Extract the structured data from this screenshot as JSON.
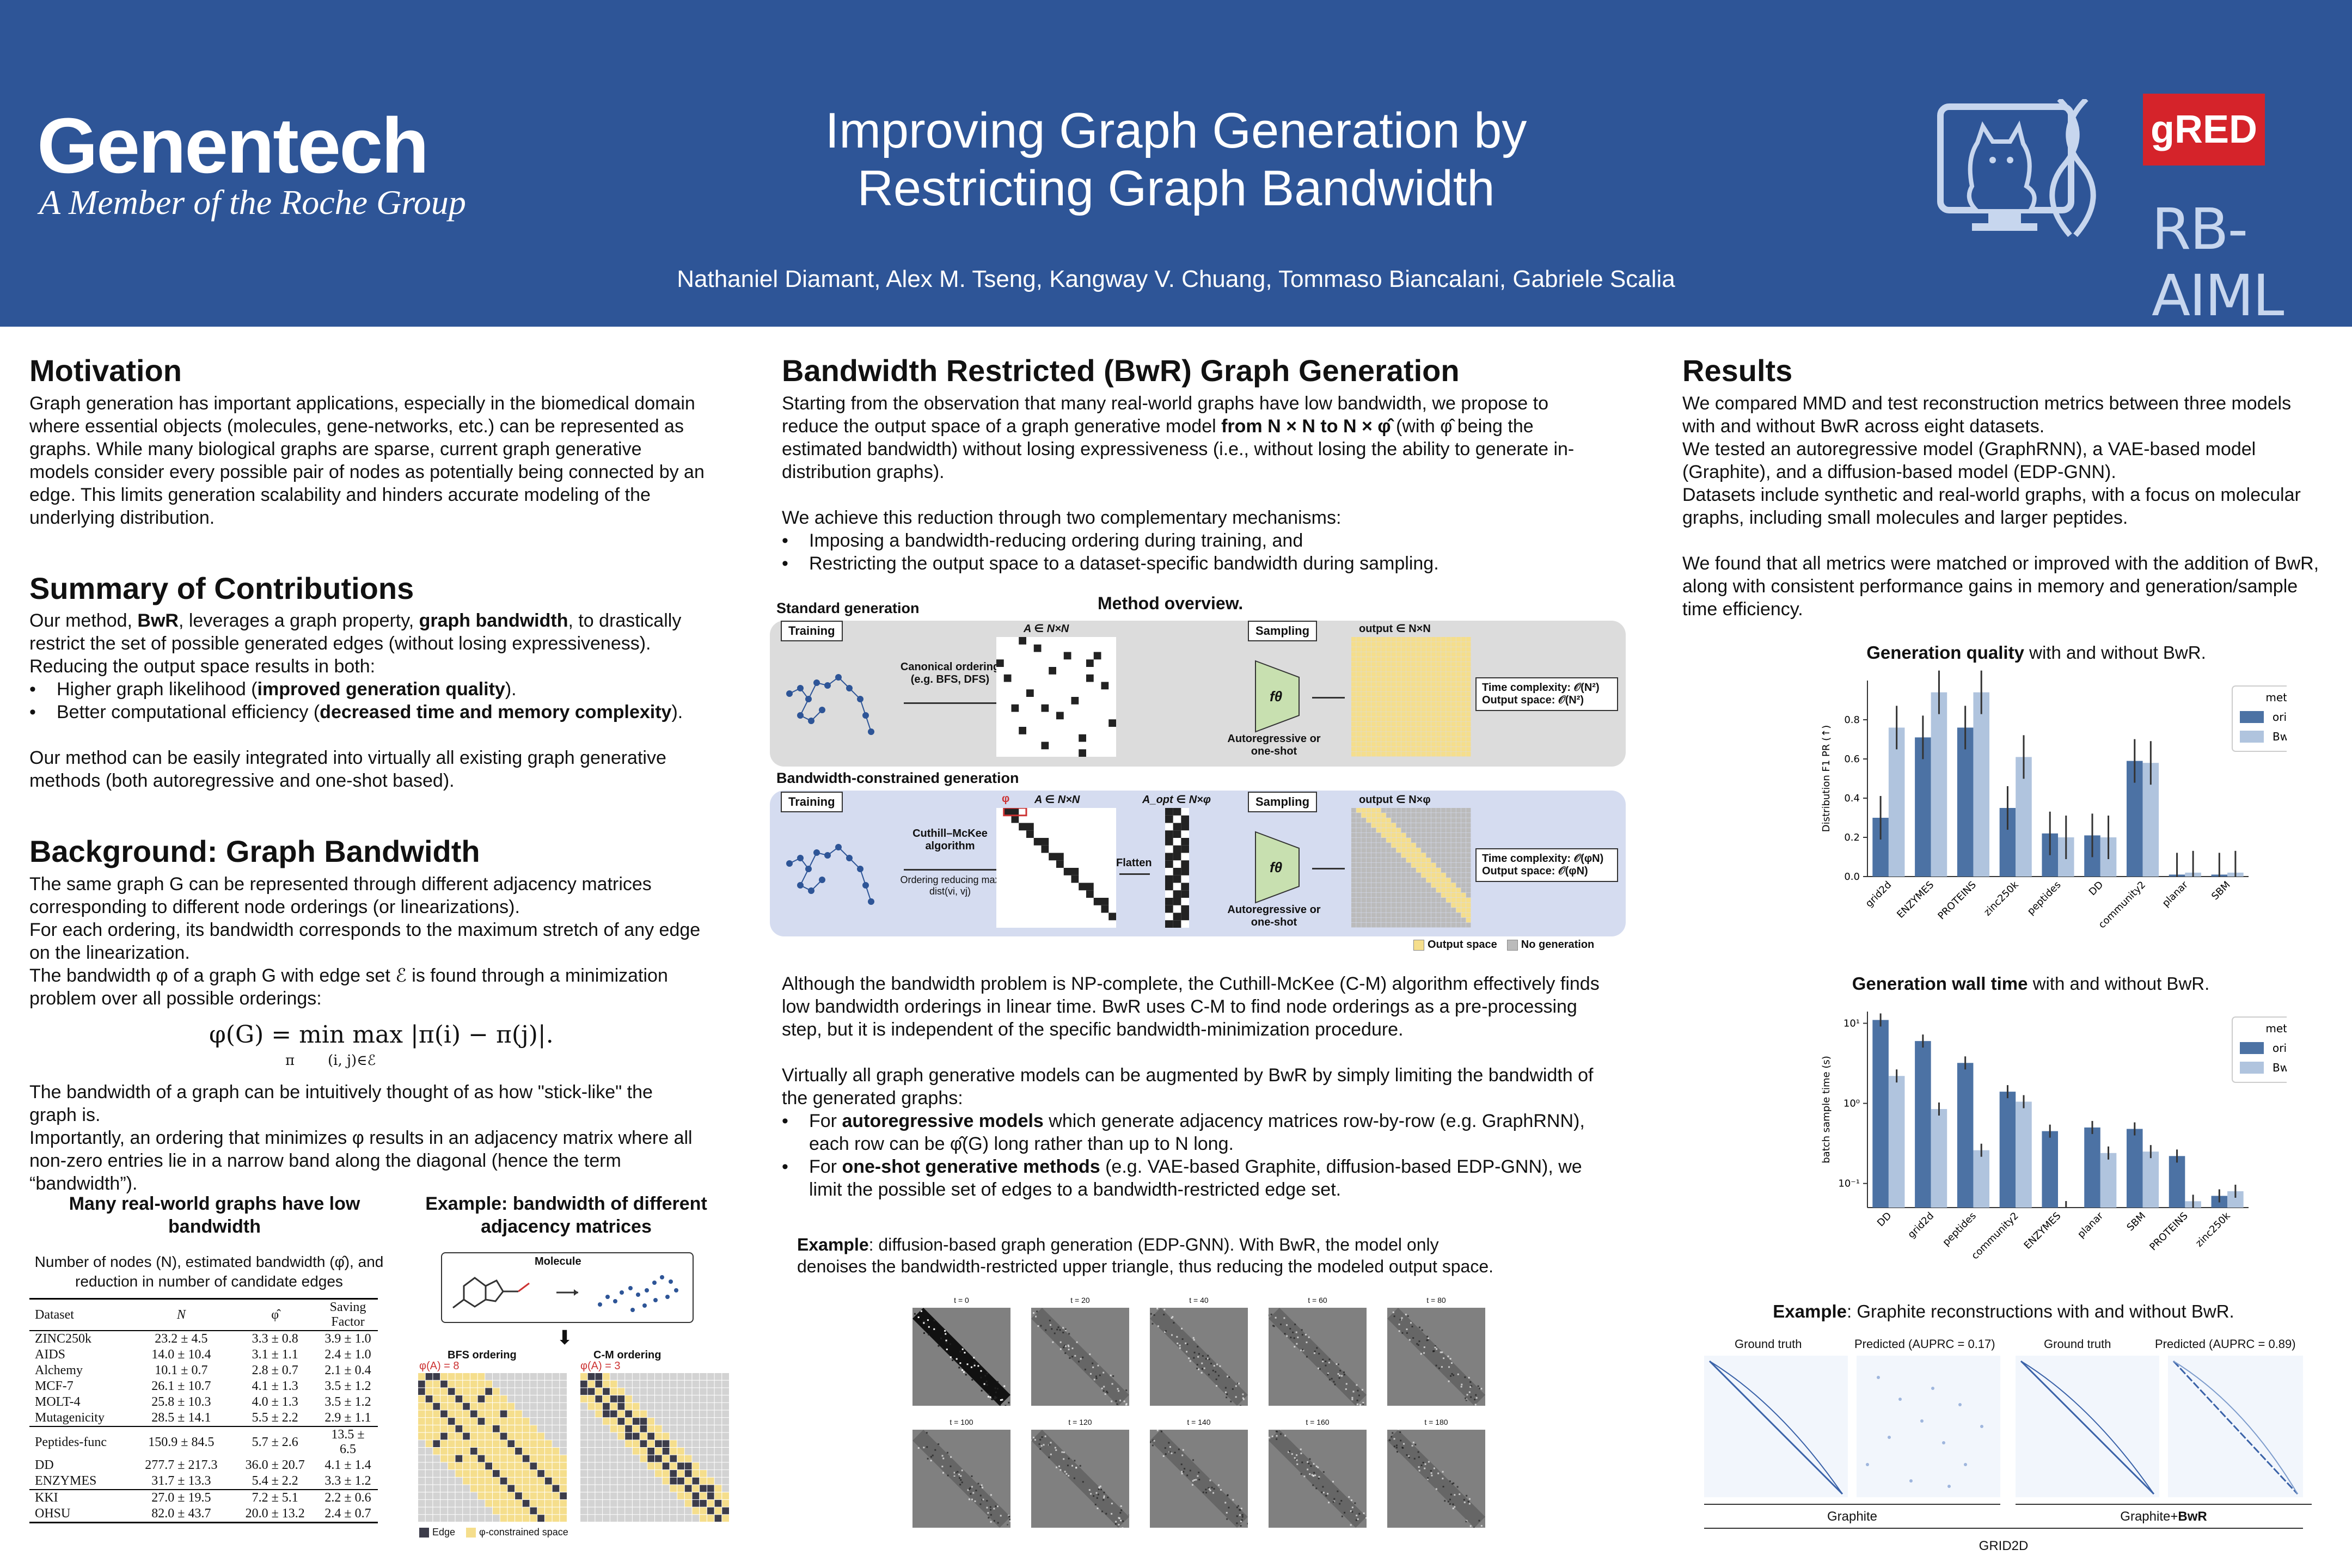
{
  "header": {
    "brand": "Genentech",
    "brand_sub": "A Member of the Roche Group",
    "title_line1": "Improving Graph Generation by",
    "title_line2": "Restricting Graph Bandwidth",
    "authors": "Nathaniel Diamant, Alex M. Tseng, Kangway V. Chuang, Tommaso Biancalani, Gabriele Scalia",
    "logo_gred": "gRED",
    "logo_rbaiml": "RB-AIML",
    "colors": {
      "header_bg": "#2e5597",
      "gred_red": "#d5232a"
    }
  },
  "motivation": {
    "heading": "Motivation",
    "text": "Graph generation has important applications, especially in the biomedical domain where essential objects (molecules, gene-networks, etc.) can be represented as graphs. While many biological graphs are sparse, current graph generative models consider every possible pair of nodes as potentially being connected by an edge. This limits generation scalability and hinders accurate modeling of the underlying distribution."
  },
  "contributions": {
    "heading": "Summary of Contributions",
    "p1_a": "Our method, ",
    "p1_b": "BwR",
    "p1_c": ", leverages a graph property, ",
    "p1_d": "graph bandwidth",
    "p1_e": ", to drastically restrict the set of possible generated edges (without losing expressiveness). Reducing the output space results in both:",
    "b1_a": "Higher graph likelihood (",
    "b1_b": "improved generation quality",
    "b1_c": ").",
    "b2_a": "Better computational efficiency (",
    "b2_b": "decreased time and memory complexity",
    "b2_c": ").",
    "p2": "Our method can be easily integrated into virtually all existing graph generative methods (both autoregressive and one-shot based)."
  },
  "background": {
    "heading": "Background: Graph Bandwidth",
    "p1": "The same graph G can be represented through different adjacency matrices corresponding to different node orderings (or linearizations).",
    "p2": "For each ordering, its bandwidth corresponds to the maximum stretch of any edge on the linearization.",
    "p3": "The bandwidth φ of a graph G with edge set ℰ is found through a minimization problem over all possible orderings:",
    "formula": "φ(G) = min max |π(i) − π(j)|.",
    "formula_sub_min": "π",
    "formula_sub_max": "(i, j)∈ℰ",
    "p4": "The bandwidth of a graph can be intuitively thought of as how \"stick-like\" the graph is.",
    "p5": "Importantly, an ordering that minimizes φ results in an adjacency matrix where all non-zero entries lie in a narrow band along the diagonal (hence the term “bandwidth”)."
  },
  "table_section": {
    "title": "Many real-world graphs have low bandwidth",
    "caption": "Number of nodes (N), estimated bandwidth (φ̂), and reduction in number of candidate edges",
    "columns": [
      "Dataset",
      "N",
      "φ̂",
      "Saving Factor"
    ],
    "groups": [
      [
        [
          "ZINC250k",
          "23.2 ± 4.5",
          "3.3 ± 0.8",
          "3.9 ± 1.0"
        ],
        [
          "AIDS",
          "14.0 ± 10.4",
          "3.1 ± 1.1",
          "2.4 ± 1.0"
        ],
        [
          "Alchemy",
          "10.1 ± 0.7",
          "2.8 ± 0.7",
          "2.1 ± 0.4"
        ],
        [
          "MCF-7",
          "26.1 ± 10.7",
          "4.1 ± 1.3",
          "3.5 ± 1.2"
        ],
        [
          "MOLT-4",
          "25.8 ± 10.3",
          "4.0 ± 1.3",
          "3.5 ± 1.2"
        ],
        [
          "Mutagenicity",
          "28.5 ± 14.1",
          "5.5 ± 2.2",
          "2.9 ± 1.1"
        ]
      ],
      [
        [
          "Peptides-func",
          "150.9 ± 84.5",
          "5.7 ± 2.6",
          "13.5 ± 6.5"
        ],
        [
          "DD",
          "277.7 ± 217.3",
          "36.0 ± 20.7",
          "4.1 ± 1.4"
        ],
        [
          "ENZYMES",
          "31.7 ± 13.3",
          "5.4 ± 2.2",
          "3.3 ± 1.2"
        ]
      ],
      [
        [
          "KKI",
          "27.0 ± 19.5",
          "7.2 ± 5.1",
          "2.2 ± 0.6"
        ],
        [
          "OHSU",
          "82.0 ± 43.7",
          "20.0 ± 13.2",
          "2.4 ± 0.7"
        ]
      ]
    ]
  },
  "example_bw": {
    "title": "Example: bandwidth of different adjacency matrices",
    "molecule_label": "Molecule",
    "bfs_label": "BFS ordering",
    "cm_label": "C-M ordering",
    "bfs_phi": "φ(A) = 8",
    "cm_phi": "φ(A) = 3",
    "legend_edge": "Edge",
    "legend_space": "φ-constrained space"
  },
  "bwr": {
    "heading": "Bandwidth Restricted (BwR) Graph Generation",
    "p1_a": "Starting from the observation that many real-world graphs have low bandwidth, we propose to reduce the output space of a graph generative model ",
    "p1_b": "from N × N to N × φ̂",
    "p1_c": " (with φ̂ being the estimated bandwidth) without losing expressiveness (i.e., without losing the ability to generate in-distribution graphs).",
    "p2": "We achieve this reduction through two complementary mechanisms:",
    "b1": "Imposing a bandwidth-reducing ordering during training, and",
    "b2": "Restricting the output space to a dataset-specific bandwidth during sampling.",
    "p3": "Although the bandwidth problem is NP-complete, the Cuthill-McKee (C-M) algorithm effectively finds low bandwidth orderings in linear time. BwR uses C-M to find node orderings as a pre-processing step, but it is independent of the specific bandwidth-minimization procedure.",
    "p4": "Virtually all graph generative models can be augmented by BwR by simply limiting the bandwidth of the generated graphs:",
    "b3_a": "For ",
    "b3_b": "autoregressive models",
    "b3_c": " which generate adjacency matrices row-by-row (e.g. GraphRNN), each row can be φ̂(G) long rather than up to N long.",
    "b4_a": "For ",
    "b4_b": "one-shot generative methods",
    "b4_c": " (e.g. VAE-based Graphite, diffusion-based EDP-GNN), we limit the possible set of edges to a bandwidth-restricted edge set."
  },
  "method": {
    "title": "Method overview.",
    "standard_label": "Standard generation",
    "constrained_label": "Bandwidth-constrained generation",
    "training": "Training",
    "sampling": "Sampling",
    "canonical": "Canonical ordering (e.g. BFS, DFS)",
    "cm_alg": "Cuthill–McKee algorithm",
    "cm_sub": "Ordering reducing max dist(vi, vj)",
    "flatten": "Flatten",
    "a_nn": "A ∈ N×N",
    "a_opt": "A_opt ∈ N×φ",
    "out_nn": "output ∈ N×N",
    "out_nphi": "output ∈ N×φ",
    "f_theta": "fθ",
    "model_label": "Autoregressive or one-shot",
    "phi": "φ",
    "tc_std": "Time complexity: 𝒪(N²)",
    "os_std": "Output space: 𝒪(N²)",
    "tc_bw": "Time complexity: 𝒪(φN)",
    "os_bw": "Output space: 𝒪(φN)",
    "legend_output": "Output space",
    "legend_nogen": "No generation"
  },
  "diffusion": {
    "caption_a": "Example",
    "caption_b": ": diffusion-based graph generation (EDP-GNN). With BwR, the model only denoises the bandwidth-restricted upper triangle, thus reducing the modeled output space.",
    "steps": [
      "t = 0",
      "t = 20",
      "t = 40",
      "t = 60",
      "t = 80",
      "t = 100",
      "t = 120",
      "t = 140",
      "t = 160",
      "t = 180"
    ]
  },
  "results": {
    "heading": "Results",
    "p1": "We compared MMD and test reconstruction metrics between three models with and without BwR across eight datasets.",
    "p2": "We tested an autoregressive model (GraphRNN), a VAE-based model (Graphite), and a diffusion-based model (EDP-GNN).",
    "p3": "Datasets include synthetic and real-world graphs, with a focus on molecular graphs, including small molecules and larger peptides.",
    "p4": "We found that all metrics were matched or improved with the addition of BwR, along with consistent performance gains in memory and generation/sample time efficiency."
  },
  "chart_data": [
    {
      "type": "bar",
      "title_bold": "Generation quality",
      "title_rest": " with and without BwR.",
      "ylabel": "Distribution F1 PR (↑)",
      "ylim": [
        0,
        1.0
      ],
      "yticks": [
        "0.0",
        "0.2",
        "0.4",
        "0.6",
        "0.8"
      ],
      "categories": [
        "grid2d",
        "ENZYMES",
        "PROTEINS",
        "zinc250k",
        "peptides",
        "DD",
        "community2",
        "planar",
        "SBM"
      ],
      "legend_title": "method",
      "series": [
        {
          "name": "original",
          "color": "#4c72a4",
          "values": [
            0.3,
            0.71,
            0.76,
            0.35,
            0.22,
            0.21,
            0.59,
            0.01,
            0.01
          ]
        },
        {
          "name": "BwR",
          "color": "#b0c4de",
          "values": [
            0.76,
            0.94,
            0.94,
            0.61,
            0.2,
            0.2,
            0.58,
            0.02,
            0.02
          ]
        }
      ]
    },
    {
      "type": "bar",
      "title_bold": "Generation wall time",
      "title_rest": " with and without BwR.",
      "ylabel": "batch sample time (s)",
      "log_scale": true,
      "yticks": [
        "10¹",
        "10⁰",
        "10⁻¹"
      ],
      "categories": [
        "DD",
        "grid2d",
        "peptides",
        "community2",
        "ENZYMES",
        "planar",
        "SBM",
        "PROTEINS",
        "zinc250k"
      ],
      "legend_title": "method",
      "series": [
        {
          "name": "original",
          "color": "#4c72a4",
          "values": [
            11.0,
            6.0,
            3.2,
            1.4,
            0.45,
            0.5,
            0.48,
            0.22,
            0.07
          ]
        },
        {
          "name": "BwR",
          "color": "#b0c4de",
          "values": [
            2.2,
            0.85,
            0.26,
            1.05,
            0.05,
            0.24,
            0.25,
            0.06,
            0.08
          ]
        }
      ]
    }
  ],
  "graphite": {
    "caption_a": "Example",
    "caption_b": ": Graphite reconstructions with and without BwR.",
    "gt1": "Ground truth",
    "pred1": "Predicted (AUPRC = 0.17)",
    "gt2": "Ground truth",
    "pred2": "Predicted (AUPRC = 0.89)",
    "left_label": "Graphite",
    "right_label_a": "Graphite+",
    "right_label_b": "BwR",
    "bottom_label": "GRID2D"
  }
}
